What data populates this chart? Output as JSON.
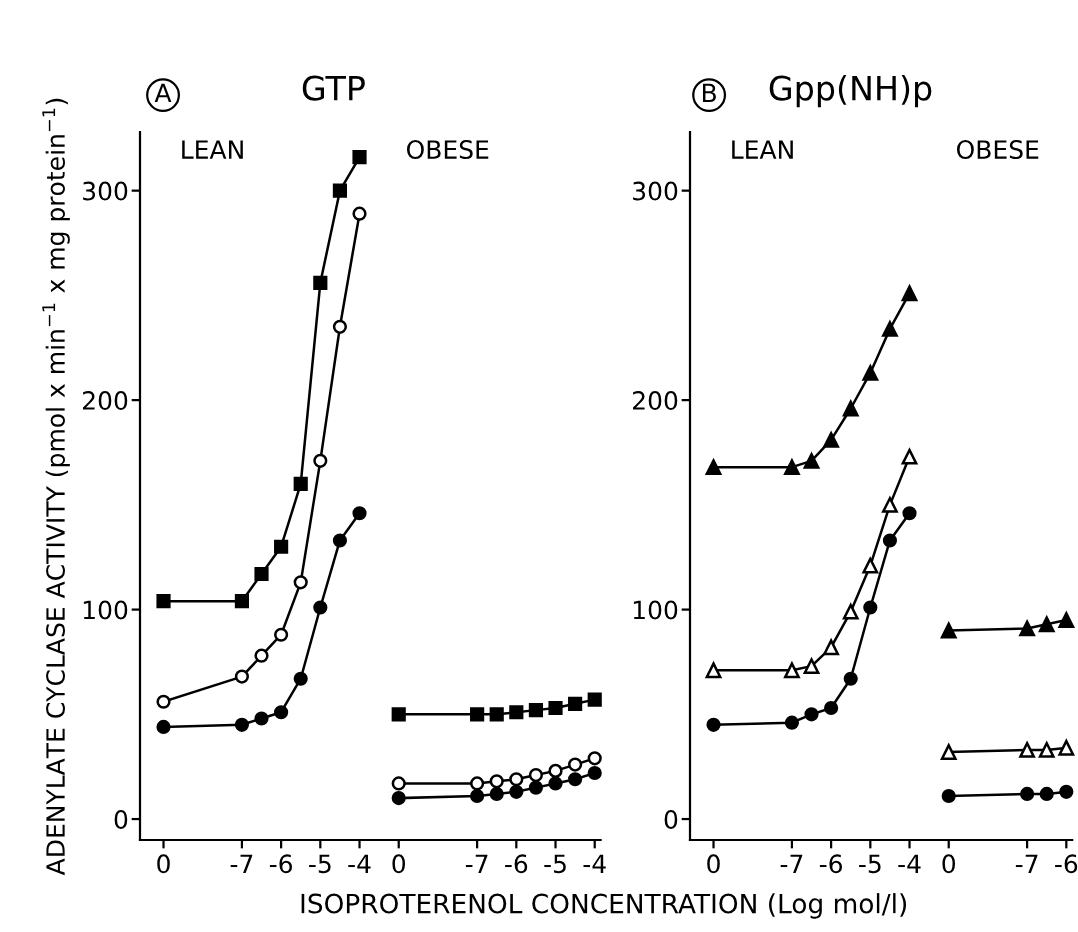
{
  "chart_data": [
    {
      "type": "line",
      "title": "GTP",
      "annotations": [
        "A",
        "LEAN",
        "OBESE"
      ],
      "ylabel": "ADENYLATE CYCLASE ACTIVITY (pmol x min$^{−1}$ x mg protein$^{−1}$)",
      "xlabel": "ISOPROTERENOL CONCENTRATION (Log mol/l)",
      "categories": [
        "0",
        null,
        null,
        null,
        "-7",
        null,
        "-6",
        null,
        "-5",
        null,
        "-4",
        null,
        "0",
        null,
        null,
        null,
        "-7",
        null,
        "-6",
        null,
        "-5",
        null,
        "-4"
      ],
      "ylim": [
        -10,
        328
      ],
      "yticks": [
        0,
        100,
        200,
        300
      ],
      "grid": false,
      "legend": false,
      "line_style": "solid",
      "series": [
        {
          "marker": "square",
          "color": "#000000",
          "values": [
            104,
            null,
            null,
            null,
            104,
            117,
            130,
            160,
            256,
            300,
            316,
            null,
            null,
            null,
            null,
            null,
            null,
            null,
            null,
            null,
            null,
            null,
            null
          ]
        },
        {
          "marker": "circle",
          "color": "#000000",
          "colors": [
            "#ffffff",
            "#ffffff",
            "#ffffff",
            "#ffffff",
            "#ffffff",
            "#ffffff",
            "#ffffff",
            "#ffffff",
            "#ffffff",
            "#ffffff",
            "#ffffff",
            "#ffffff",
            "#ffffff",
            "#ffffff",
            "#ffffff",
            "#ffffff",
            "#ffffff",
            "#ffffff",
            "#ffffff",
            "#ffffff",
            "#ffffff",
            "#ffffff",
            "#ffffff"
          ],
          "values": [
            56,
            null,
            null,
            null,
            68,
            78,
            88,
            113,
            171,
            235,
            289,
            null,
            null,
            null,
            null,
            null,
            null,
            null,
            null,
            null,
            null,
            null,
            null
          ]
        },
        {
          "marker": "circle",
          "color": "#000000",
          "values": [
            44,
            null,
            null,
            null,
            45,
            48,
            51,
            67,
            101,
            133,
            146,
            null,
            null,
            null,
            null,
            null,
            null,
            null,
            null,
            null,
            null,
            null,
            null
          ]
        },
        {
          "marker": "square",
          "color": "#000000",
          "values": [
            null,
            null,
            null,
            null,
            null,
            null,
            null,
            null,
            null,
            null,
            null,
            null,
            50,
            null,
            null,
            null,
            50,
            50,
            51,
            52,
            53,
            55,
            57
          ]
        },
        {
          "marker": "circle",
          "color": "#000000",
          "colors": [
            "#ffffff",
            "#ffffff",
            "#ffffff",
            "#ffffff",
            "#ffffff",
            "#ffffff",
            "#ffffff",
            "#ffffff",
            "#ffffff",
            "#ffffff",
            "#ffffff",
            "#ffffff",
            "#ffffff",
            "#ffffff",
            "#ffffff",
            "#ffffff",
            "#ffffff",
            "#ffffff",
            "#ffffff",
            "#ffffff",
            "#ffffff",
            "#ffffff",
            "#ffffff"
          ],
          "values": [
            null,
            null,
            null,
            null,
            null,
            null,
            null,
            null,
            null,
            null,
            null,
            null,
            17,
            null,
            null,
            null,
            17,
            18,
            19,
            21,
            23,
            26,
            29
          ]
        },
        {
          "marker": "circle",
          "color": "#000000",
          "values": [
            null,
            null,
            null,
            null,
            null,
            null,
            null,
            null,
            null,
            null,
            null,
            null,
            10,
            null,
            null,
            null,
            11,
            12,
            13,
            15,
            17,
            19,
            22
          ]
        }
      ]
    },
    {
      "type": "line",
      "title": "Gpp(NH)p",
      "annotations": [
        "B",
        "LEAN",
        "OBESE"
      ],
      "categories": [
        "0",
        null,
        null,
        null,
        "-7",
        null,
        "-6",
        null,
        "-5",
        null,
        "-4",
        null,
        "0",
        null,
        null,
        null,
        "-7",
        null,
        "-6"
      ],
      "ylim": [
        -10,
        328
      ],
      "yticks": [
        0,
        100,
        200,
        300
      ],
      "grid": false,
      "legend": false,
      "line_style": "solid",
      "series": [
        {
          "marker": "triangle",
          "color": "#000000",
          "values": [
            168,
            null,
            null,
            null,
            168,
            171,
            181,
            196,
            213,
            234,
            251,
            null,
            null,
            null,
            null,
            null,
            null,
            null,
            null
          ]
        },
        {
          "marker": "triangle",
          "color": "#000000",
          "colors": [
            "#ffffff",
            "#ffffff",
            "#ffffff",
            "#ffffff",
            "#ffffff",
            "#ffffff",
            "#ffffff",
            "#ffffff",
            "#ffffff",
            "#ffffff",
            "#ffffff",
            "#ffffff",
            "#ffffff",
            "#ffffff",
            "#ffffff",
            "#ffffff",
            "#ffffff",
            "#ffffff",
            "#ffffff"
          ],
          "values": [
            71,
            null,
            null,
            null,
            71,
            73,
            82,
            99,
            121,
            150,
            173,
            null,
            null,
            null,
            null,
            null,
            null,
            null,
            null
          ]
        },
        {
          "marker": "circle",
          "color": "#000000",
          "values": [
            45,
            null,
            null,
            null,
            46,
            50,
            53,
            67,
            101,
            133,
            146,
            null,
            null,
            null,
            null,
            null,
            null,
            null,
            null
          ]
        },
        {
          "marker": "triangle",
          "color": "#000000",
          "values": [
            null,
            null,
            null,
            null,
            null,
            null,
            null,
            null,
            null,
            null,
            null,
            null,
            90,
            null,
            null,
            null,
            91,
            93,
            95
          ]
        },
        {
          "marker": "triangle",
          "color": "#000000",
          "colors": [
            "#ffffff",
            "#ffffff",
            "#ffffff",
            "#ffffff",
            "#ffffff",
            "#ffffff",
            "#ffffff",
            "#ffffff",
            "#ffffff",
            "#ffffff",
            "#ffffff",
            "#ffffff",
            "#ffffff",
            "#ffffff",
            "#ffffff",
            "#ffffff",
            "#ffffff",
            "#ffffff",
            "#ffffff"
          ],
          "values": [
            null,
            null,
            null,
            null,
            null,
            null,
            null,
            null,
            null,
            null,
            null,
            null,
            32,
            null,
            null,
            null,
            33,
            33,
            34
          ]
        },
        {
          "marker": "circle",
          "color": "#000000",
          "values": [
            null,
            null,
            null,
            null,
            null,
            null,
            null,
            null,
            null,
            null,
            null,
            null,
            11,
            null,
            null,
            null,
            12,
            12,
            13
          ]
        }
      ]
    }
  ]
}
